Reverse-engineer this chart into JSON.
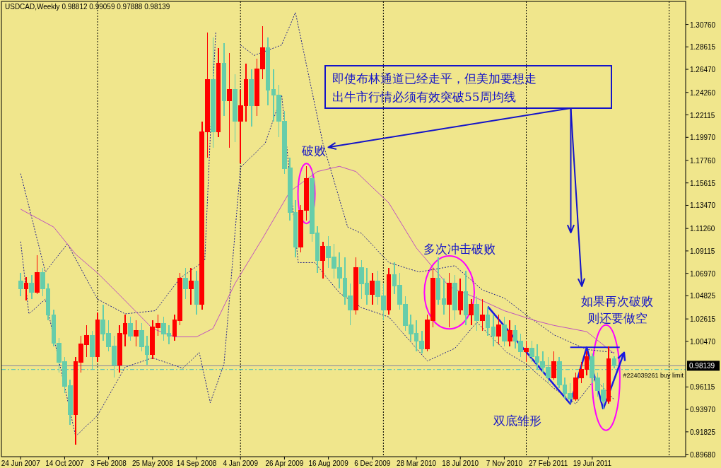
{
  "chart_data": {
    "type": "candlestick",
    "title": "USDCAD,Weekly  0.98812 0.99059 0.97888 0.98139",
    "x": [
      "2007-06-24",
      "2007-07-08",
      "2007-07-22",
      "2007-08-05",
      "2007-08-19",
      "2007-09-02",
      "2007-09-16",
      "2007-09-30",
      "2007-10-14",
      "2007-10-28",
      "2007-11-11",
      "2007-11-25",
      "2007-12-09",
      "2007-12-23",
      "2008-01-06",
      "2008-01-20",
      "2008-02-03",
      "2008-02-17",
      "2008-03-02",
      "2008-03-16",
      "2008-03-30",
      "2008-04-13",
      "2008-04-27",
      "2008-05-11",
      "2008-05-25",
      "2008-06-08",
      "2008-06-22",
      "2008-07-06",
      "2008-07-20",
      "2008-08-03",
      "2008-08-17",
      "2008-08-31",
      "2008-09-14",
      "2008-09-28",
      "2008-10-12",
      "2008-10-26",
      "2008-11-09",
      "2008-11-23",
      "2008-12-07",
      "2008-12-21",
      "2009-01-04",
      "2009-01-18",
      "2009-02-01",
      "2009-02-15",
      "2009-03-01",
      "2009-03-15",
      "2009-03-29",
      "2009-04-12",
      "2009-04-26",
      "2009-05-10",
      "2009-05-24",
      "2009-06-07",
      "2009-06-21",
      "2009-07-05",
      "2009-07-19",
      "2009-08-02",
      "2009-08-16",
      "2009-08-30",
      "2009-09-13",
      "2009-09-27",
      "2009-10-11",
      "2009-10-25",
      "2009-11-08",
      "2009-11-22",
      "2009-12-06",
      "2009-12-20",
      "2010-01-03",
      "2010-01-17",
      "2010-01-31",
      "2010-02-14",
      "2010-02-28",
      "2010-03-14",
      "2010-03-28",
      "2010-04-11",
      "2010-04-25",
      "2010-05-09",
      "2010-05-23",
      "2010-06-06",
      "2010-06-20",
      "2010-07-04",
      "2010-07-18",
      "2010-08-01",
      "2010-08-15",
      "2010-08-29",
      "2010-09-12",
      "2010-09-26",
      "2010-10-10",
      "2010-10-24",
      "2010-11-07",
      "2010-11-21",
      "2010-12-05",
      "2010-12-19",
      "2011-01-02",
      "2011-01-16",
      "2011-01-30",
      "2011-02-13",
      "2011-02-27",
      "2011-03-13",
      "2011-03-27",
      "2011-04-10",
      "2011-04-24",
      "2011-05-08",
      "2011-05-22",
      "2011-06-05",
      "2011-06-19",
      "2011-07-03",
      "2011-07-17",
      "2011-07-31",
      "2011-08-14"
    ],
    "ohlc": [
      [
        1.062,
        1.07,
        1.048,
        1.055
      ],
      [
        1.055,
        1.066,
        1.044,
        1.06
      ],
      [
        1.06,
        1.068,
        1.045,
        1.052
      ],
      [
        1.052,
        1.087,
        1.05,
        1.07
      ],
      [
        1.07,
        1.075,
        1.048,
        1.055
      ],
      [
        1.055,
        1.06,
        1.025,
        1.03
      ],
      [
        1.03,
        1.035,
        1.0,
        1.003
      ],
      [
        1.003,
        1.008,
        0.975,
        0.985
      ],
      [
        0.985,
        0.99,
        0.955,
        0.962
      ],
      [
        0.962,
        0.968,
        0.925,
        0.935
      ],
      [
        0.935,
        0.99,
        0.906,
        0.985
      ],
      [
        0.985,
        1.01,
        0.975,
        1.002
      ],
      [
        1.002,
        1.02,
        0.99,
        1.01
      ],
      [
        1.01,
        1.015,
        0.978,
        0.99
      ],
      [
        0.99,
        1.032,
        0.985,
        1.025
      ],
      [
        1.025,
        1.04,
        1.005,
        1.012
      ],
      [
        1.012,
        1.025,
        0.995,
        1.0
      ],
      [
        1.0,
        1.01,
        0.97,
        0.982
      ],
      [
        0.982,
        1.02,
        0.975,
        1.012
      ],
      [
        1.012,
        1.03,
        1.0,
        1.022
      ],
      [
        1.022,
        1.028,
        1.005,
        1.01
      ],
      [
        1.01,
        1.025,
        1.0,
        1.015
      ],
      [
        1.015,
        1.022,
        0.995,
        1.0
      ],
      [
        1.0,
        1.01,
        0.982,
        0.992
      ],
      [
        0.992,
        1.025,
        0.988,
        1.018
      ],
      [
        1.018,
        1.03,
        1.01,
        1.022
      ],
      [
        1.022,
        1.028,
        1.005,
        1.012
      ],
      [
        1.012,
        1.02,
        1.002,
        1.01
      ],
      [
        1.01,
        1.03,
        1.005,
        1.025
      ],
      [
        1.025,
        1.07,
        1.02,
        1.065
      ],
      [
        1.065,
        1.075,
        1.045,
        1.055
      ],
      [
        1.055,
        1.075,
        1.04,
        1.062
      ],
      [
        1.062,
        1.072,
        1.03,
        1.04
      ],
      [
        1.04,
        1.215,
        1.035,
        1.205
      ],
      [
        1.205,
        1.3,
        1.18,
        1.255
      ],
      [
        1.255,
        1.295,
        1.19,
        1.205
      ],
      [
        1.205,
        1.285,
        1.2,
        1.27
      ],
      [
        1.27,
        1.29,
        1.22,
        1.235
      ],
      [
        1.235,
        1.28,
        1.19,
        1.245
      ],
      [
        1.245,
        1.26,
        1.195,
        1.215
      ],
      [
        1.215,
        1.245,
        1.175,
        1.23
      ],
      [
        1.23,
        1.27,
        1.215,
        1.255
      ],
      [
        1.255,
        1.265,
        1.21,
        1.23
      ],
      [
        1.23,
        1.275,
        1.22,
        1.265
      ],
      [
        1.265,
        1.306,
        1.255,
        1.285
      ],
      [
        1.285,
        1.295,
        1.23,
        1.245
      ],
      [
        1.245,
        1.265,
        1.215,
        1.24
      ],
      [
        1.24,
        1.25,
        1.2,
        1.215
      ],
      [
        1.215,
        1.225,
        1.165,
        1.17
      ],
      [
        1.17,
        1.18,
        1.12,
        1.128
      ],
      [
        1.128,
        1.14,
        1.085,
        1.095
      ],
      [
        1.095,
        1.135,
        1.09,
        1.13
      ],
      [
        1.13,
        1.172,
        1.12,
        1.16
      ],
      [
        1.16,
        1.168,
        1.1,
        1.108
      ],
      [
        1.108,
        1.115,
        1.07,
        1.082
      ],
      [
        1.082,
        1.1,
        1.065,
        1.095
      ],
      [
        1.095,
        1.105,
        1.075,
        1.085
      ],
      [
        1.085,
        1.098,
        1.065,
        1.075
      ],
      [
        1.075,
        1.09,
        1.055,
        1.065
      ],
      [
        1.065,
        1.085,
        1.04,
        1.048
      ],
      [
        1.048,
        1.06,
        1.02,
        1.035
      ],
      [
        1.035,
        1.085,
        1.03,
        1.075
      ],
      [
        1.075,
        1.082,
        1.045,
        1.06
      ],
      [
        1.06,
        1.075,
        1.04,
        1.05
      ],
      [
        1.05,
        1.07,
        1.04,
        1.062
      ],
      [
        1.062,
        1.072,
        1.04,
        1.048
      ],
      [
        1.048,
        1.06,
        1.025,
        1.035
      ],
      [
        1.035,
        1.075,
        1.03,
        1.068
      ],
      [
        1.068,
        1.08,
        1.05,
        1.058
      ],
      [
        1.058,
        1.07,
        1.035,
        1.04
      ],
      [
        1.04,
        1.048,
        1.015,
        1.02
      ],
      [
        1.02,
        1.03,
        1.005,
        1.012
      ],
      [
        1.012,
        1.025,
        0.995,
        1.005
      ],
      [
        1.005,
        1.015,
        0.993,
        0.998
      ],
      [
        0.998,
        1.03,
        0.995,
        1.025
      ],
      [
        1.025,
        1.075,
        1.018,
        1.065
      ],
      [
        1.065,
        1.085,
        1.04,
        1.045
      ],
      [
        1.045,
        1.065,
        1.03,
        1.04
      ],
      [
        1.04,
        1.07,
        1.018,
        1.06
      ],
      [
        1.06,
        1.068,
        1.025,
        1.035
      ],
      [
        1.035,
        1.065,
        1.03,
        1.052
      ],
      [
        1.052,
        1.072,
        1.02,
        1.03
      ],
      [
        1.03,
        1.045,
        1.02,
        1.04
      ],
      [
        1.04,
        1.048,
        1.015,
        1.025
      ],
      [
        1.025,
        1.045,
        1.015,
        1.03
      ],
      [
        1.03,
        1.038,
        1.01,
        1.018
      ],
      [
        1.018,
        1.03,
        1.0,
        1.01
      ],
      [
        1.01,
        1.03,
        1.002,
        1.02
      ],
      [
        1.02,
        1.028,
        1.0,
        1.005
      ],
      [
        1.005,
        1.025,
        1.0,
        1.015
      ],
      [
        1.015,
        1.02,
        0.998,
        1.005
      ],
      [
        1.005,
        1.012,
        0.99,
        0.995
      ],
      [
        0.995,
        1.005,
        0.985,
        0.998
      ],
      [
        0.998,
        1.005,
        0.985,
        0.99
      ],
      [
        0.99,
        1.002,
        0.978,
        0.985
      ],
      [
        0.985,
        0.995,
        0.975,
        0.98
      ],
      [
        0.98,
        0.99,
        0.965,
        0.97
      ],
      [
        0.97,
        0.995,
        0.968,
        0.985
      ],
      [
        0.985,
        0.99,
        0.96,
        0.963
      ],
      [
        0.963,
        0.97,
        0.95,
        0.955
      ],
      [
        0.955,
        0.965,
        0.945,
        0.95
      ],
      [
        0.95,
        0.975,
        0.948,
        0.97
      ],
      [
        0.97,
        0.985,
        0.965,
        0.978
      ],
      [
        0.978,
        0.995,
        0.972,
        0.99
      ],
      [
        0.99,
        0.993,
        0.965,
        0.97
      ],
      [
        0.97,
        0.975,
        0.952,
        0.958
      ],
      [
        0.958,
        0.965,
        0.94,
        0.948
      ],
      [
        0.948,
        1.0,
        0.945,
        0.988
      ],
      [
        0.98812,
        0.99059,
        0.97888,
        0.98139
      ]
    ],
    "colors": [
      "#66cdaa",
      "#ff0000",
      "#66cdaa",
      "#ff0000",
      "#66cdaa",
      "#66cdaa",
      "#66cdaa",
      "#66cdaa",
      "#66cdaa",
      "#66cdaa",
      "#ff0000",
      "#ff0000",
      "#ff0000",
      "#66cdaa",
      "#ff0000",
      "#66cdaa",
      "#66cdaa",
      "#66cdaa",
      "#ff0000",
      "#ff0000",
      "#66cdaa",
      "#ff0000",
      "#66cdaa",
      "#66cdaa",
      "#ff0000",
      "#ff0000",
      "#66cdaa",
      "#66cdaa",
      "#ff0000",
      "#ff0000",
      "#66cdaa",
      "#ff0000",
      "#66cdaa",
      "#ff0000",
      "#ff0000",
      "#66cdaa",
      "#ff0000",
      "#66cdaa",
      "#ff0000",
      "#66cdaa",
      "#ff0000",
      "#ff0000",
      "#66cdaa",
      "#ff0000",
      "#ff0000",
      "#66cdaa",
      "#66cdaa",
      "#66cdaa",
      "#66cdaa",
      "#66cdaa",
      "#66cdaa",
      "#ff0000",
      "#ff0000",
      "#66cdaa",
      "#66cdaa",
      "#ff0000",
      "#66cdaa",
      "#66cdaa",
      "#66cdaa",
      "#66cdaa",
      "#66cdaa",
      "#ff0000",
      "#66cdaa",
      "#66cdaa",
      "#ff0000",
      "#66cdaa",
      "#66cdaa",
      "#ff0000",
      "#66cdaa",
      "#66cdaa",
      "#66cdaa",
      "#66cdaa",
      "#66cdaa",
      "#66cdaa",
      "#ff0000",
      "#ff0000",
      "#66cdaa",
      "#66cdaa",
      "#ff0000",
      "#66cdaa",
      "#ff0000",
      "#66cdaa",
      "#ff0000",
      "#66cdaa",
      "#ff0000",
      "#66cdaa",
      "#66cdaa",
      "#ff0000",
      "#66cdaa",
      "#ff0000",
      "#66cdaa",
      "#66cdaa",
      "#ff0000",
      "#66cdaa",
      "#66cdaa",
      "#66cdaa",
      "#66cdaa",
      "#ff0000",
      "#66cdaa",
      "#66cdaa",
      "#66cdaa",
      "#ff0000",
      "#ff0000",
      "#ff0000",
      "#66cdaa",
      "#66cdaa",
      "#66cdaa",
      "#ff0000",
      "#66cdaa"
    ],
    "series": [
      {
        "type": "line",
        "color": "#1c1c8c",
        "line_style": "dotted",
        "x": [
          "2007-06-24",
          "2007-08-26",
          "2007-10-21",
          "2008-01-06",
          "2008-03-16",
          "2008-06-01",
          "2008-08-03",
          "2008-10-05",
          "2008-10-19",
          "2008-11-02",
          "2008-11-16",
          "2008-12-14",
          "2009-01-04",
          "2009-02-08",
          "2009-04-19",
          "2009-05-24",
          "2009-08-02",
          "2009-10-04",
          "2009-11-08",
          "2010-01-17",
          "2010-04-04",
          "2010-07-04",
          "2010-09-12",
          "2010-11-07",
          "2011-01-02",
          "2011-03-13",
          "2011-06-05",
          "2011-08-14"
        ],
        "values": [
          1.165,
          1.071,
          1.098,
          1.045,
          1.031,
          1.034,
          1.065,
          1.082,
          1.2,
          1.3,
          null,
          null,
          1.288,
          1.278,
          1.288,
          1.319,
          1.194,
          1.114,
          1.108,
          1.08,
          1.071,
          1.077,
          1.054,
          1.046,
          1.03,
          1.011,
          0.997,
          0.994
        ]
      },
      {
        "type": "line",
        "color": "#1c1c8c",
        "line_style": "dotted",
        "x": [
          "2007-06-24",
          "2007-07-15",
          "2007-08-26",
          "2007-11-11",
          "2008-01-06",
          "2008-03-16",
          "2008-05-25",
          "2008-08-10",
          "2008-09-21",
          "2008-10-19",
          "2008-11-23",
          "2009-01-04",
          "2009-03-08",
          "2009-04-19",
          "2009-05-31",
          "2009-07-12",
          "2009-09-13",
          "2009-11-08",
          "2010-01-17",
          "2010-04-25",
          "2010-07-04",
          "2010-08-29",
          "2010-11-14",
          "2011-01-02",
          "2011-03-13",
          "2011-05-08",
          "2011-06-26",
          "2011-08-14"
        ],
        "values": [
          1.1,
          1.031,
          1.045,
          0.914,
          0.934,
          0.98,
          0.989,
          0.979,
          0.994,
          0.946,
          0.983,
          1.171,
          1.194,
          1.24,
          1.08,
          1.08,
          1.051,
          1.037,
          1.028,
          0.986,
          0.998,
          1.023,
          0.994,
          0.983,
          0.96,
          0.945,
          0.969,
          0.949
        ]
      },
      {
        "type": "line",
        "color": "#c050c0",
        "line_style": "solid",
        "x": [
          "2007-06-24",
          "2007-09-16",
          "2007-11-11",
          "2008-01-06",
          "2008-03-02",
          "2008-05-25",
          "2008-07-20",
          "2008-09-14",
          "2008-10-26",
          "2008-12-21",
          "2009-03-01",
          "2009-05-10",
          "2009-07-19",
          "2009-09-13",
          "2009-10-25",
          "2010-01-17",
          "2010-03-28",
          "2010-06-20",
          "2010-08-29",
          "2010-11-07",
          "2011-01-30",
          "2011-03-13",
          "2011-06-05",
          "2011-08-14"
        ],
        "values": [
          1.131,
          1.114,
          1.088,
          1.07,
          1.049,
          1.017,
          1.009,
          1.009,
          1.017,
          1.06,
          1.103,
          1.148,
          1.167,
          1.172,
          1.167,
          1.137,
          1.094,
          1.057,
          1.046,
          1.034,
          1.024,
          1.02,
          1.014,
          0.993
        ]
      },
      {
        "type": "line",
        "color": "#1a1ae0",
        "line_style": "solid",
        "x": [
          "2010-09-26",
          "2011-04-24",
          "2011-06-05",
          "2011-07-17"
        ],
        "values": [
          1.038,
          0.945,
          0.999,
          0.94
        ]
      },
      {
        "type": "line",
        "color": "#1a1ae0",
        "line_style": "solid",
        "x": [
          "2011-04-24",
          "2011-08-28"
        ],
        "values": [
          0.999,
          0.999
        ]
      }
    ],
    "xlim": [
      "2007-05-06",
      "2012-02-12"
    ],
    "ylim": [
      0.8945,
      1.3296
    ],
    "xticks": [
      {
        "value": "2007-06-24",
        "label": "24 Jun 2007"
      },
      {
        "value": "2007-10-14",
        "label": "14 Oct 2007"
      },
      {
        "value": "2008-02-03",
        "label": "3 Feb 2008"
      },
      {
        "value": "2008-05-25",
        "label": "25 May 2008"
      },
      {
        "value": "2008-09-14",
        "label": "14 Sep 2008"
      },
      {
        "value": "2009-01-04",
        "label": "4 Jan 2009"
      },
      {
        "value": "2009-04-26",
        "label": "26 Apr 2009"
      },
      {
        "value": "2009-08-16",
        "label": "16 Aug 2009"
      },
      {
        "value": "2009-12-06",
        "label": "6 Dec 2009"
      },
      {
        "value": "2010-03-28",
        "label": "28 Mar 2010"
      },
      {
        "value": "2010-07-18",
        "label": "18 Jul 2010"
      },
      {
        "value": "2010-11-07",
        "label": "7 Nov 2010"
      },
      {
        "value": "2011-02-27",
        "label": "27 Feb 2011"
      },
      {
        "value": "2011-06-19",
        "label": "19 Jun 2011"
      }
    ],
    "yticks": [
      {
        "value": 1.3076,
        "label": "1.30760"
      },
      {
        "value": 1.28615,
        "label": "1.28615"
      },
      {
        "value": 1.2647,
        "label": "1.26470"
      },
      {
        "value": 1.2426,
        "label": "1.24260"
      },
      {
        "value": 1.22115,
        "label": "1.22115"
      },
      {
        "value": 1.1997,
        "label": "1.19970"
      },
      {
        "value": 1.1776,
        "label": "1.17760"
      },
      {
        "value": 1.15615,
        "label": "1.15615"
      },
      {
        "value": 1.1347,
        "label": "1.13470"
      },
      {
        "value": 1.1126,
        "label": "1.11260"
      },
      {
        "value": 1.09115,
        "label": "1.09115"
      },
      {
        "value": 1.0697,
        "label": "1.06970"
      },
      {
        "value": 1.04825,
        "label": "1.04825"
      },
      {
        "value": 1.02615,
        "label": "1.02615"
      },
      {
        "value": 1.0047,
        "label": "1.00470"
      },
      {
        "value": 0.96115,
        "label": "0.96115"
      },
      {
        "value": 0.9397,
        "label": "0.93970"
      },
      {
        "value": 0.91825,
        "label": "0.91825"
      },
      {
        "value": 0.8968,
        "label": "0.89680"
      }
    ],
    "ref_lines": [
      {
        "axis": "x",
        "value": "2008-01-06",
        "color": "#000000",
        "line_style": "dotted"
      },
      {
        "axis": "x",
        "value": "2009-01-04",
        "color": "#000000",
        "line_style": "dotted"
      },
      {
        "axis": "x",
        "value": "2010-01-03",
        "color": "#000000",
        "line_style": "dotted"
      },
      {
        "axis": "x",
        "value": "2011-01-02",
        "color": "#000000",
        "line_style": "dotted"
      },
      {
        "axis": "x",
        "value": "2012-01-01",
        "color": "#000000",
        "line_style": "dotted"
      },
      {
        "axis": "y",
        "value": 0.98139,
        "label": "0.98139",
        "color": "#8080a0",
        "line_style": "solid"
      },
      {
        "axis": "y",
        "value": 0.9778,
        "label": "#224039261 buy limit",
        "color": "#40c0c0",
        "line_style": "dashed"
      }
    ],
    "annotations": [
      "即使布林通道已经走平，但美加要想走出牛市行情必须有效突破55周均线",
      {
        "text": "破败",
        "x": "2009-06-21",
        "y": 1.172
      },
      "多次冲击破败",
      {
        "text": "如果再次破败则还要做空",
        "x": "2011-07-31",
        "y": 1.0
      },
      {
        "text": "双底雏形",
        "x": "2011-04-24",
        "y": 0.945
      }
    ]
  }
}
